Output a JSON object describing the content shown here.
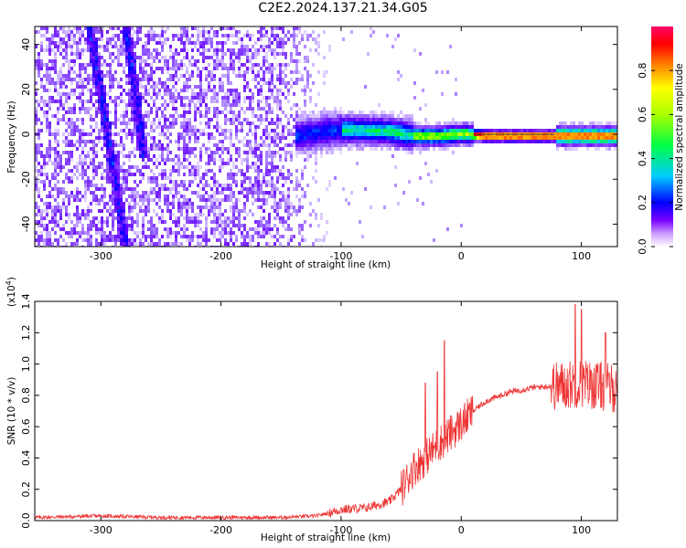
{
  "title": "C2E2.2024.137.21.34.G05",
  "chart_data": [
    {
      "type": "heatmap",
      "xlabel": "Height of straight line (km)",
      "ylabel": "Frequency (Hz)",
      "xlim": [
        -355,
        130
      ],
      "ylim": [
        -50,
        48
      ],
      "xticks": [
        -300,
        -200,
        -100,
        0,
        100
      ],
      "yticks": [
        -40,
        -20,
        0,
        20,
        40
      ],
      "colorbar": {
        "label": "Normalized spectral amplitude",
        "ticks": [
          "0.0",
          "0.2",
          "0.4",
          "0.6",
          "0.8"
        ],
        "range": [
          0,
          1
        ],
        "colormap": [
          "#ffffff",
          "#9966ff",
          "#6600ff",
          "#0000ff",
          "#00ccff",
          "#00ff00",
          "#ffff00",
          "#ff8000",
          "#ff0000",
          "#ff0066"
        ]
      },
      "features": {
        "noise_region_x": [
          -355,
          -110
        ],
        "signal_trace": [
          [
            -140,
            0
          ],
          [
            -100,
            3
          ],
          [
            -60,
            2
          ],
          [
            -40,
            0
          ],
          [
            -20,
            0
          ],
          [
            0,
            1
          ],
          [
            20,
            0
          ],
          [
            75,
            0
          ],
          [
            130,
            0
          ]
        ],
        "diagonal_streaks": [
          [
            [
              -310,
              48
            ],
            [
              -280,
              -50
            ]
          ],
          [
            [
              -280,
              48
            ],
            [
              -265,
              -10
            ]
          ]
        ]
      }
    },
    {
      "type": "line",
      "xlabel": "Height of straight line (km)",
      "ylabel": "SNR (10 * v/v)",
      "multiplier_label": "(x10",
      "multiplier_exp": "4",
      "xlim": [
        -355,
        130
      ],
      "ylim": [
        0,
        1.4
      ],
      "xticks": [
        -300,
        -200,
        -100,
        0,
        100
      ],
      "yticks": [
        "0.0",
        "0.2",
        "0.4",
        "0.6",
        "0.8",
        "1.0",
        "1.2",
        "1.4"
      ],
      "series": [
        {
          "color": "#ee3333",
          "envelope": [
            [
              -355,
              0.02
            ],
            [
              -300,
              0.03
            ],
            [
              -250,
              0.02
            ],
            [
              -150,
              0.02
            ],
            [
              -120,
              0.03
            ],
            [
              -100,
              0.07
            ],
            [
              -80,
              0.08
            ],
            [
              -60,
              0.12
            ],
            [
              -50,
              0.2
            ],
            [
              -40,
              0.33
            ],
            [
              -30,
              0.4
            ],
            [
              -20,
              0.48
            ],
            [
              -10,
              0.55
            ],
            [
              0,
              0.62
            ],
            [
              10,
              0.7
            ],
            [
              20,
              0.76
            ],
            [
              40,
              0.82
            ],
            [
              60,
              0.85
            ],
            [
              75,
              0.86
            ],
            [
              80,
              0.86
            ],
            [
              100,
              0.88
            ],
            [
              130,
              0.84
            ]
          ],
          "spikes": [
            [
              -14,
              1.15
            ],
            [
              -20,
              0.95
            ],
            [
              -30,
              0.88
            ],
            [
              95,
              1.38
            ],
            [
              100,
              1.35
            ],
            [
              120,
              1.2
            ]
          ]
        }
      ]
    }
  ]
}
